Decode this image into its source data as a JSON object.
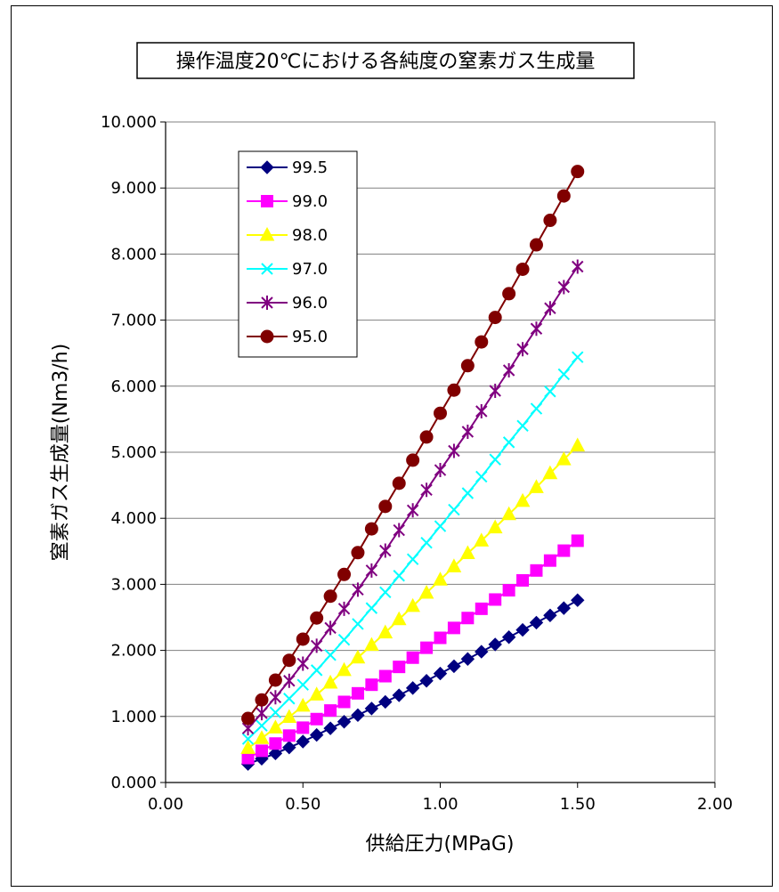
{
  "chart_data": {
    "type": "line",
    "title": "操作温度20℃における各純度の窒素ガス生成量",
    "xlabel": "供給圧力(MPaG)",
    "ylabel": "窒素ガス生成量(Nm3/h)",
    "xlim": [
      0,
      2
    ],
    "ylim": [
      0,
      10
    ],
    "x_ticks": [
      "0.00",
      "0.50",
      "1.00",
      "1.50",
      "2.00"
    ],
    "y_ticks": [
      "0.000",
      "1.000",
      "2.000",
      "3.000",
      "4.000",
      "5.000",
      "6.000",
      "7.000",
      "8.000",
      "9.000",
      "10.000"
    ],
    "grid": "horizontal",
    "legend_position": "top-left",
    "x": [
      0.3,
      0.35,
      0.4,
      0.45,
      0.5,
      0.55,
      0.6,
      0.65,
      0.7,
      0.75,
      0.8,
      0.85,
      0.9,
      0.95,
      1.0,
      1.05,
      1.1,
      1.15,
      1.2,
      1.25,
      1.3,
      1.35,
      1.4,
      1.45,
      1.5
    ],
    "series": [
      {
        "name": "99.5",
        "color": "#000080",
        "marker": "diamond",
        "values": [
          0.28,
          0.36,
          0.44,
          0.53,
          0.62,
          0.72,
          0.82,
          0.92,
          1.02,
          1.12,
          1.22,
          1.32,
          1.43,
          1.54,
          1.65,
          1.76,
          1.87,
          1.98,
          2.09,
          2.2,
          2.31,
          2.42,
          2.53,
          2.64,
          2.76
        ]
      },
      {
        "name": "99.0",
        "color": "#FF00FF",
        "marker": "square",
        "values": [
          0.37,
          0.48,
          0.59,
          0.71,
          0.83,
          0.96,
          1.09,
          1.22,
          1.35,
          1.48,
          1.61,
          1.75,
          1.89,
          2.04,
          2.19,
          2.34,
          2.49,
          2.63,
          2.77,
          2.91,
          3.06,
          3.21,
          3.36,
          3.51,
          3.66
        ]
      },
      {
        "name": "98.0",
        "color": "#FFFF00",
        "marker": "triangle",
        "values": [
          0.52,
          0.67,
          0.83,
          0.99,
          1.16,
          1.33,
          1.51,
          1.7,
          1.89,
          2.08,
          2.27,
          2.47,
          2.67,
          2.87,
          3.07,
          3.27,
          3.47,
          3.66,
          3.86,
          4.06,
          4.26,
          4.47,
          4.68,
          4.89,
          5.1
        ]
      },
      {
        "name": "97.0",
        "color": "#00FFFF",
        "marker": "x",
        "values": [
          0.66,
          0.86,
          1.06,
          1.27,
          1.48,
          1.7,
          1.93,
          2.16,
          2.4,
          2.64,
          2.88,
          3.13,
          3.38,
          3.63,
          3.88,
          4.13,
          4.38,
          4.63,
          4.89,
          5.15,
          5.4,
          5.66,
          5.92,
          6.18,
          6.44
        ]
      },
      {
        "name": "96.0",
        "color": "#800080",
        "marker": "star",
        "values": [
          0.82,
          1.05,
          1.29,
          1.54,
          1.8,
          2.07,
          2.34,
          2.63,
          2.92,
          3.21,
          3.51,
          3.82,
          4.12,
          4.43,
          4.73,
          5.02,
          5.31,
          5.62,
          5.93,
          6.24,
          6.56,
          6.87,
          7.18,
          7.5,
          7.81
        ]
      },
      {
        "name": "95.0",
        "color": "#800000",
        "marker": "circle",
        "values": [
          0.97,
          1.25,
          1.55,
          1.85,
          2.17,
          2.49,
          2.82,
          3.15,
          3.48,
          3.84,
          4.18,
          4.53,
          4.88,
          5.23,
          5.59,
          5.94,
          6.31,
          6.67,
          7.04,
          7.4,
          7.77,
          8.14,
          8.51,
          8.88,
          9.25
        ]
      }
    ]
  }
}
